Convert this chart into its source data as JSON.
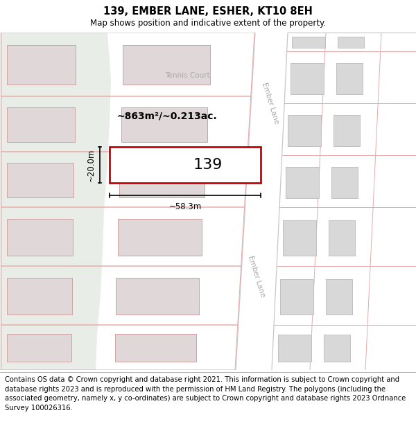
{
  "title_line1": "139, EMBER LANE, ESHER, KT10 8EH",
  "title_line2": "Map shows position and indicative extent of the property.",
  "footer_text": "Contains OS data © Crown copyright and database right 2021. This information is subject to Crown copyright and database rights 2023 and is reproduced with the permission of HM Land Registry. The polygons (including the associated geometry, namely x, y co-ordinates) are subject to Crown copyright and database rights 2023 Ordnance Survey 100026316.",
  "map_bg": "#f0f0f0",
  "green_color": "#e8ede8",
  "road_fill": "#ffffff",
  "road_line_color": "#e8aaaa",
  "road_gray_line": "#c8c8c8",
  "building_fill": "#e0d8d8",
  "building_edge": "#d4a0a0",
  "building_fill_right": "#d8d8d8",
  "building_edge_right": "#c0c0c0",
  "subject_fill": "#ffffff",
  "subject_edge": "#cc0000",
  "label_gray": "#aaaaaa",
  "area_label": "~863m²/~0.213ac.",
  "width_label": "~58.3m",
  "height_label": "~20.0m",
  "number_label": "139",
  "ember_lane_label": "Ember Lane",
  "tennis_court_label": "Tennis Court",
  "title_fontsize": 10.5,
  "subtitle_fontsize": 8.5,
  "footer_fontsize": 7.2
}
